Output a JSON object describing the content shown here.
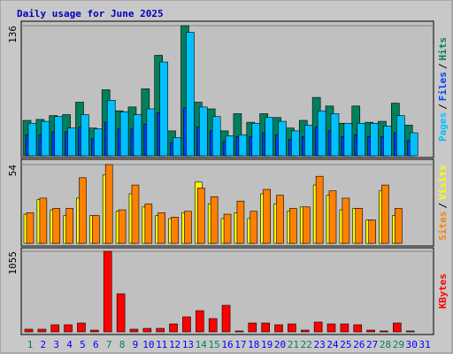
{
  "title": "Daily usage for June 2025",
  "label_separator": "/",
  "categories": [
    "1",
    "2",
    "3",
    "4",
    "5",
    "6",
    "7",
    "8",
    "9",
    "10",
    "11",
    "12",
    "13",
    "14",
    "15",
    "16",
    "17",
    "18",
    "19",
    "20",
    "21",
    "22",
    "23",
    "24",
    "25",
    "26",
    "27",
    "28",
    "29",
    "30",
    "31"
  ],
  "category_colors": [
    "#00805c",
    "#0000ff",
    "#0000ff",
    "#0000ff",
    "#0000ff",
    "#0000ff",
    "#00805c",
    "#00805c",
    "#0000ff",
    "#0000ff",
    "#0000ff",
    "#0000ff",
    "#0000ff",
    "#00805c",
    "#00805c",
    "#0000ff",
    "#0000ff",
    "#0000ff",
    "#0000ff",
    "#0000ff",
    "#00805c",
    "#00805c",
    "#0000ff",
    "#0000ff",
    "#0000ff",
    "#0000ff",
    "#0000ff",
    "#00805c",
    "#00805c",
    "#0000ff",
    "#0000ff"
  ],
  "chart_data": [
    {
      "type": "bar",
      "ylim": [
        0,
        136
      ],
      "yticks": [
        136
      ],
      "series": [
        {
          "name": "Hits",
          "color": "#00805c",
          "values": [
            37,
            38,
            42,
            43,
            56,
            29,
            69,
            47,
            51,
            70,
            105,
            26,
            136,
            56,
            49,
            26,
            44,
            35,
            44,
            40,
            29,
            37,
            61,
            52,
            34,
            52,
            35,
            36,
            55,
            32,
            0
          ]
        },
        {
          "name": "Files",
          "color": "#0040ff",
          "values": [
            22,
            22,
            25,
            25,
            30,
            18,
            35,
            28,
            28,
            33,
            45,
            14,
            50,
            30,
            26,
            15,
            20,
            20,
            24,
            22,
            17,
            20,
            30,
            26,
            20,
            22,
            20,
            20,
            24,
            16,
            0
          ]
        },
        {
          "name": "Pages",
          "color": "#00c0ff",
          "values": [
            34,
            36,
            41,
            29,
            43,
            28,
            58,
            46,
            43,
            49,
            98,
            19,
            129,
            51,
            41,
            21,
            22,
            34,
            40,
            36,
            26,
            32,
            47,
            44,
            34,
            34,
            34,
            31,
            42,
            24,
            0
          ]
        }
      ],
      "legend_order": [
        "Pages",
        "Files",
        "Hits"
      ]
    },
    {
      "type": "bar",
      "ylim": [
        0,
        54
      ],
      "yticks": [
        54
      ],
      "series": [
        {
          "name": "Visits",
          "color": "#ffff00",
          "values": [
            20,
            30,
            23,
            19,
            31,
            19,
            47,
            22,
            34,
            25,
            19,
            17,
            21,
            42,
            27,
            17,
            21,
            17,
            34,
            27,
            22,
            25,
            40,
            33,
            23,
            24,
            16,
            36,
            19,
            0,
            0
          ]
        },
        {
          "name": "Sites",
          "color": "#ff8000",
          "values": [
            21,
            31,
            24,
            24,
            45,
            19,
            54,
            23,
            40,
            27,
            21,
            18,
            22,
            38,
            32,
            20,
            29,
            22,
            37,
            33,
            24,
            25,
            46,
            36,
            31,
            24,
            16,
            40,
            24,
            0,
            0
          ]
        }
      ],
      "legend_order": [
        "Sites",
        "Visits"
      ]
    },
    {
      "type": "bar",
      "ylim": [
        0,
        1055
      ],
      "yticks": [
        1055
      ],
      "series": [
        {
          "name": "KBytes",
          "color": "#ff0000",
          "values": [
            35,
            35,
            93,
            93,
            116,
            23,
            1055,
            499,
            35,
            46,
            46,
            104,
            197,
            278,
            174,
            348,
            12,
            116,
            116,
            93,
            104,
            23,
            128,
            104,
            104,
            93,
            23,
            12,
            116,
            12,
            0
          ]
        }
      ],
      "legend_order": [
        "KBytes"
      ]
    }
  ]
}
